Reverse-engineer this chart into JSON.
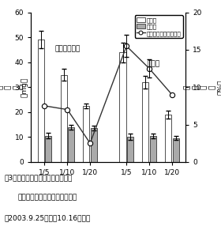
{
  "groups": [
    "極早生シスコ",
    "シスコ"
  ],
  "x_labels": [
    "1/5",
    "1/10",
    "1/20",
    "1/5",
    "1/10",
    "1/20"
  ],
  "above_ground": [
    49.0,
    35.0,
    22.5,
    44.0,
    32.0,
    19.0
  ],
  "above_ground_err": [
    3.5,
    2.5,
    1.0,
    4.0,
    2.5,
    1.5
  ],
  "below_ground": [
    10.5,
    14.0,
    13.5,
    10.0,
    10.5,
    9.5
  ],
  "below_ground_err": [
    1.2,
    1.0,
    1.0,
    1.2,
    1.0,
    0.8
  ],
  "cv_line": [
    7.5,
    7.0,
    2.5,
    15.5,
    12.5,
    9.0
  ],
  "cv_line_err": [
    0.0,
    0.0,
    0.0,
    1.5,
    1.2,
    0.0
  ],
  "ylim_left": [
    0,
    60
  ],
  "ylim_right": [
    0,
    20
  ],
  "yticks_left": [
    0,
    10,
    20,
    30,
    40,
    50,
    60
  ],
  "yticks_right": [
    0,
    5,
    10,
    15,
    20
  ],
  "ylabel_left": "乾\n物\n重\n（mg）",
  "ylabel_right": "変\n動\n係\n数\n（%）",
  "legend_above": "地上部",
  "legend_below": "地下部",
  "legend_cv": "地上部乾物重変動係数",
  "title_line1": "図3　育苗開始時培養液濃度による",
  "title_line2": "　地上部・地下部の生育と揃い",
  "title_line3": "（2003.9.25播種、10.16調査）",
  "color_above": "#ffffff",
  "color_below": "#aaaaaa",
  "color_cv": "#333333",
  "bar_edge": "#333333",
  "background": "#ffffff"
}
